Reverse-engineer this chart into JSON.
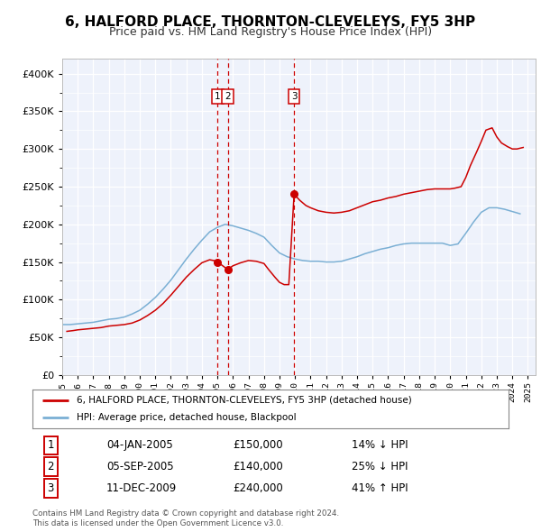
{
  "title": "6, HALFORD PLACE, THORNTON-CLEVELEYS, FY5 3HP",
  "subtitle": "Price paid vs. HM Land Registry's House Price Index (HPI)",
  "legend_label_red": "6, HALFORD PLACE, THORNTON-CLEVELEYS, FY5 3HP (detached house)",
  "legend_label_blue": "HPI: Average price, detached house, Blackpool",
  "footer_line1": "Contains HM Land Registry data © Crown copyright and database right 2024.",
  "footer_line2": "This data is licensed under the Open Government Licence v3.0.",
  "transactions": [
    {
      "num": "1",
      "date": "04-JAN-2005",
      "price": "£150,000",
      "pct": "14% ↓ HPI",
      "x_val": 2005.01,
      "y_val": 150000
    },
    {
      "num": "2",
      "date": "05-SEP-2005",
      "price": "£140,000",
      "pct": "25% ↓ HPI",
      "x_val": 2005.67,
      "y_val": 140000
    },
    {
      "num": "3",
      "date": "11-DEC-2009",
      "price": "£240,000",
      "pct": "41% ↑ HPI",
      "x_val": 2009.94,
      "y_val": 240000
    }
  ],
  "red_color": "#cc0000",
  "blue_color": "#7aafd4",
  "vline_color": "#cc0000",
  "plot_bg": "#eef2fb",
  "ylim": [
    0,
    420000
  ],
  "xlim_start": 1995.0,
  "xlim_end": 2025.5,
  "grid_color": "#ffffff",
  "red_line_years": [
    1995.3,
    1995.7,
    1996.0,
    1996.5,
    1997.0,
    1997.5,
    1998.0,
    1998.5,
    1999.0,
    1999.5,
    2000.0,
    2000.5,
    2001.0,
    2001.5,
    2002.0,
    2002.5,
    2003.0,
    2003.5,
    2004.0,
    2004.5,
    2005.0,
    2005.01,
    2005.67,
    2006.0,
    2006.5,
    2007.0,
    2007.5,
    2008.0,
    2008.3,
    2008.7,
    2009.0,
    2009.3,
    2009.6,
    2009.94,
    2010.3,
    2010.7,
    2011.0,
    2011.5,
    2012.0,
    2012.5,
    2013.0,
    2013.5,
    2014.0,
    2014.5,
    2015.0,
    2015.5,
    2016.0,
    2016.5,
    2017.0,
    2017.5,
    2018.0,
    2018.5,
    2019.0,
    2019.5,
    2020.0,
    2020.3,
    2020.7,
    2021.0,
    2021.3,
    2021.7,
    2022.0,
    2022.3,
    2022.7,
    2023.0,
    2023.3,
    2023.7,
    2024.0,
    2024.3,
    2024.7
  ],
  "red_line_vals": [
    58000,
    59000,
    60000,
    61000,
    62000,
    63000,
    65000,
    66000,
    67000,
    69000,
    73000,
    79000,
    86000,
    95000,
    106000,
    118000,
    130000,
    140000,
    149000,
    153000,
    151000,
    150000,
    140000,
    145000,
    149000,
    152000,
    151000,
    148000,
    140000,
    130000,
    123000,
    120000,
    120000,
    240000,
    232000,
    225000,
    222000,
    218000,
    216000,
    215000,
    216000,
    218000,
    222000,
    226000,
    230000,
    232000,
    235000,
    237000,
    240000,
    242000,
    244000,
    246000,
    247000,
    247000,
    247000,
    248000,
    250000,
    262000,
    278000,
    296000,
    310000,
    325000,
    328000,
    316000,
    308000,
    303000,
    300000,
    300000,
    302000
  ],
  "blue_line_years": [
    1995.0,
    1995.5,
    1996.0,
    1996.5,
    1997.0,
    1997.5,
    1998.0,
    1998.5,
    1999.0,
    1999.5,
    2000.0,
    2000.5,
    2001.0,
    2001.5,
    2002.0,
    2002.5,
    2003.0,
    2003.5,
    2004.0,
    2004.5,
    2005.0,
    2005.5,
    2006.0,
    2006.5,
    2007.0,
    2007.5,
    2008.0,
    2008.5,
    2009.0,
    2009.5,
    2010.0,
    2010.5,
    2011.0,
    2011.5,
    2012.0,
    2012.5,
    2013.0,
    2013.5,
    2014.0,
    2014.5,
    2015.0,
    2015.5,
    2016.0,
    2016.5,
    2017.0,
    2017.5,
    2018.0,
    2018.5,
    2019.0,
    2019.5,
    2020.0,
    2020.5,
    2021.0,
    2021.5,
    2022.0,
    2022.5,
    2023.0,
    2023.5,
    2024.0,
    2024.5
  ],
  "blue_line_vals": [
    67000,
    67000,
    68000,
    69000,
    70000,
    72000,
    74000,
    75000,
    77000,
    81000,
    86000,
    94000,
    103000,
    114000,
    126000,
    140000,
    154000,
    167000,
    179000,
    190000,
    196000,
    200000,
    198000,
    195000,
    192000,
    188000,
    183000,
    172000,
    162000,
    157000,
    154000,
    152000,
    151000,
    151000,
    150000,
    150000,
    151000,
    154000,
    157000,
    161000,
    164000,
    167000,
    169000,
    172000,
    174000,
    175000,
    175000,
    175000,
    175000,
    175000,
    172000,
    174000,
    188000,
    203000,
    216000,
    222000,
    222000,
    220000,
    217000,
    214000
  ]
}
